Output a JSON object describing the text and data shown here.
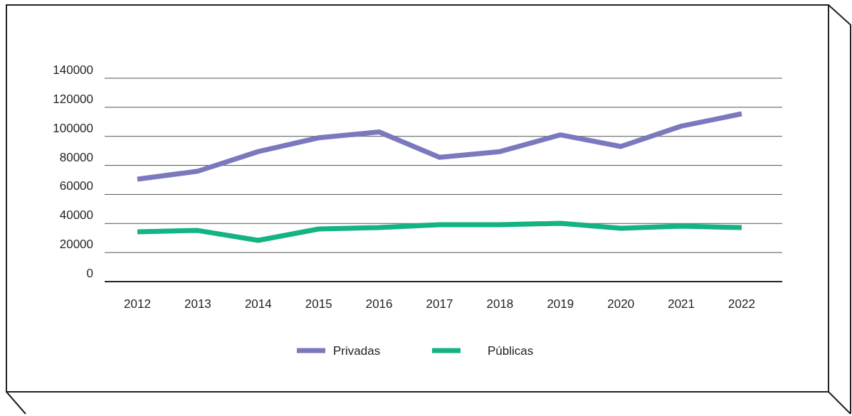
{
  "chart_data": {
    "type": "line",
    "categories": [
      "2012",
      "2013",
      "2014",
      "2015",
      "2016",
      "2017",
      "2018",
      "2019",
      "2020",
      "2021",
      "2022"
    ],
    "series": [
      {
        "name": "Privadas",
        "color": "#7a79be",
        "values": [
          70500,
          76000,
          89500,
          99000,
          103000,
          85500,
          89500,
          101000,
          93000,
          107000,
          115500
        ]
      },
      {
        "name": "Públicas",
        "color": "#14b384",
        "values": [
          34300,
          35200,
          28400,
          36200,
          37200,
          39200,
          39200,
          40100,
          36700,
          38200,
          37200
        ]
      }
    ],
    "ylim": [
      0,
      140000
    ],
    "yticks": [
      0,
      20000,
      40000,
      60000,
      80000,
      100000,
      120000,
      140000
    ],
    "grid": "y",
    "legend": "bottom",
    "marker": "none",
    "line_style": "solid"
  }
}
